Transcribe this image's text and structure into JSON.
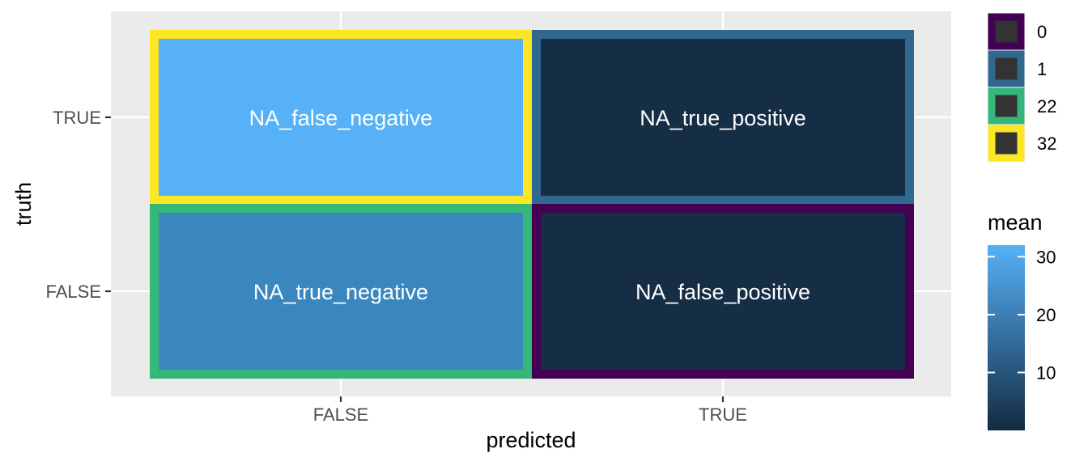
{
  "chart_data": {
    "type": "heatmap",
    "xlabel": "predicted",
    "ylabel": "truth",
    "x_categories": [
      "FALSE",
      "TRUE"
    ],
    "y_categories": [
      "FALSE",
      "TRUE"
    ],
    "cells": [
      {
        "predicted": "FALSE",
        "truth": "TRUE",
        "label": "NA_false_negative",
        "mean": 32,
        "count": 32,
        "fill": "#56b1f7",
        "border": "#fde725"
      },
      {
        "predicted": "TRUE",
        "truth": "TRUE",
        "label": "NA_true_positive",
        "mean": 1,
        "count": 1,
        "fill": "#162d46",
        "border": "#31688e"
      },
      {
        "predicted": "FALSE",
        "truth": "FALSE",
        "label": "NA_true_negative",
        "mean": 22,
        "count": 22,
        "fill": "#3a87c0",
        "border": "#35b779"
      },
      {
        "predicted": "TRUE",
        "truth": "FALSE",
        "label": "NA_false_positive",
        "mean": 0,
        "count": 0,
        "fill": "#162d46",
        "border": "#440154"
      }
    ],
    "count_legend": {
      "entries": [
        {
          "label": "0",
          "color": "#440154"
        },
        {
          "label": "1",
          "color": "#31688e"
        },
        {
          "label": "22",
          "color": "#35b779"
        },
        {
          "label": "32",
          "color": "#fde725"
        }
      ],
      "key_fill": "#333333"
    },
    "fill_legend": {
      "title": "mean",
      "min": 0,
      "max": 32,
      "ticks": [
        10,
        20,
        30
      ],
      "low_color": "#132b43",
      "high_color": "#56b1f7"
    },
    "panel_background": "#ebebeb",
    "grid": true,
    "legend_position": "right"
  }
}
